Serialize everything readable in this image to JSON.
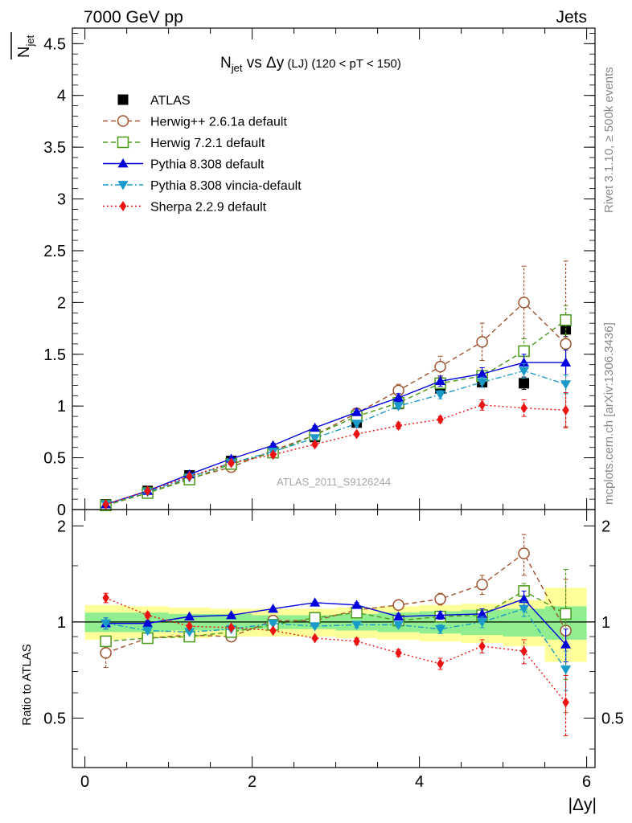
{
  "header": {
    "left": "7000 GeV pp",
    "right": "Jets"
  },
  "side_text": {
    "rivet": "Rivet 3.1.10, ≥ 500k events",
    "mcplots": "mcplots.cern.ch [arXiv:1306.3436]"
  },
  "watermark": "ATLAS_2011_S9126244",
  "colors": {
    "atlas": "#000000",
    "herwigpp": "#a0522d",
    "herwig7": "#4a9a1a",
    "pythia": "#0000dd",
    "vincia": "#1a9ac8",
    "sherpa": "#ee1111",
    "band_outer": "#ffff99",
    "band_inner": "#90ee90"
  },
  "chart_data": [
    {
      "type": "line",
      "title_main": "N",
      "title_sub": "jet",
      "title_vs": " vs ",
      "title_delta": "Δy",
      "title_lj": " (LJ)",
      "title_range": " (120 < pT < 150)",
      "ylabel_main": "N",
      "ylabel_sub": "jet",
      "ylim": [
        0,
        4.65
      ],
      "xlim": [
        -0.15,
        6.1
      ],
      "yticks": [
        0,
        0.5,
        1,
        1.5,
        2,
        2.5,
        3,
        3.5,
        4,
        4.5
      ],
      "ytick_labels": [
        "0",
        "0.5",
        "1",
        "1.5",
        "2",
        "2.5",
        "3",
        "3.5",
        "4",
        "4.5"
      ],
      "x": [
        0.25,
        0.75,
        1.25,
        1.75,
        2.25,
        2.75,
        3.25,
        3.75,
        4.25,
        4.75,
        5.25,
        5.75
      ],
      "series": [
        {
          "name": "ATLAS",
          "key": "atlas",
          "marker": "square-filled",
          "line": "none",
          "values": [
            0.05,
            0.18,
            0.33,
            0.47,
            0.56,
            0.7,
            0.84,
            1.02,
            1.17,
            1.23,
            1.22,
            1.74
          ],
          "errors": [
            0.01,
            0.01,
            0.01,
            0.01,
            0.01,
            0.02,
            0.02,
            0.03,
            0.04,
            0.05,
            0.06,
            0.07
          ]
        },
        {
          "name": "Herwig++ 2.6.1a default",
          "key": "herwigpp",
          "marker": "circle-open",
          "line": "dashed",
          "values": [
            0.04,
            0.16,
            0.3,
            0.41,
            0.57,
            0.72,
            0.93,
            1.15,
            1.38,
            1.62,
            2.0,
            1.6
          ],
          "errors": [
            0.005,
            0.01,
            0.01,
            0.02,
            0.02,
            0.03,
            0.04,
            0.06,
            0.1,
            0.18,
            0.35,
            0.8
          ]
        },
        {
          "name": "Herwig 7.2.1 default",
          "key": "herwig7",
          "marker": "square-open",
          "line": "dashed",
          "values": [
            0.04,
            0.16,
            0.29,
            0.44,
            0.55,
            0.72,
            0.9,
            1.03,
            1.22,
            1.29,
            1.53,
            1.83
          ],
          "errors": [
            0.005,
            0.01,
            0.01,
            0.02,
            0.02,
            0.03,
            0.03,
            0.04,
            0.05,
            0.08,
            0.12,
            0.14
          ]
        },
        {
          "name": "Pythia 8.308 default",
          "key": "pythia",
          "marker": "triangle-up",
          "line": "solid",
          "values": [
            0.05,
            0.18,
            0.34,
            0.49,
            0.62,
            0.79,
            0.94,
            1.08,
            1.24,
            1.31,
            1.42,
            1.42
          ],
          "errors": [
            0.005,
            0.01,
            0.01,
            0.02,
            0.02,
            0.02,
            0.03,
            0.04,
            0.05,
            0.06,
            0.08,
            0.12
          ]
        },
        {
          "name": "Pythia 8.308 vincia-default",
          "key": "vincia",
          "marker": "triangle-down",
          "line": "dashdot",
          "values": [
            0.05,
            0.17,
            0.31,
            0.45,
            0.56,
            0.69,
            0.83,
            1.0,
            1.11,
            1.23,
            1.34,
            1.21
          ],
          "errors": [
            0.005,
            0.01,
            0.01,
            0.02,
            0.02,
            0.02,
            0.03,
            0.03,
            0.04,
            0.05,
            0.07,
            0.09
          ]
        },
        {
          "name": "Sherpa 2.2.9 default",
          "key": "sherpa",
          "marker": "diamond",
          "line": "dotted",
          "values": [
            0.05,
            0.18,
            0.32,
            0.45,
            0.53,
            0.63,
            0.73,
            0.81,
            0.87,
            1.01,
            0.98,
            0.96
          ],
          "errors": [
            0.005,
            0.01,
            0.01,
            0.02,
            0.02,
            0.02,
            0.02,
            0.03,
            0.03,
            0.05,
            0.08,
            0.17
          ]
        }
      ]
    },
    {
      "type": "line",
      "ylabel": "Ratio to ATLAS",
      "xlabel": "|Δy|",
      "ylim": [
        0.35,
        2.25
      ],
      "xlim": [
        -0.15,
        6.1
      ],
      "yticks": [
        0.5,
        1,
        2
      ],
      "ytick_labels": [
        "0.5",
        "1",
        "2"
      ],
      "xticks": [
        0,
        2,
        4,
        6
      ],
      "xtick_labels": [
        "0",
        "2",
        "4",
        "6"
      ],
      "x": [
        0.25,
        0.75,
        1.25,
        1.75,
        2.25,
        2.75,
        3.25,
        3.75,
        4.25,
        4.75,
        5.25,
        5.75
      ],
      "bands": {
        "outer_lo": [
          0.88,
          0.89,
          0.89,
          0.9,
          0.9,
          0.9,
          0.89,
          0.88,
          0.87,
          0.86,
          0.84,
          0.75
        ],
        "outer_hi": [
          1.13,
          1.12,
          1.11,
          1.1,
          1.1,
          1.1,
          1.11,
          1.12,
          1.13,
          1.14,
          1.17,
          1.28
        ],
        "inner_lo": [
          0.93,
          0.93,
          0.94,
          0.94,
          0.95,
          0.95,
          0.94,
          0.93,
          0.92,
          0.91,
          0.9,
          0.88
        ],
        "inner_hi": [
          1.07,
          1.07,
          1.06,
          1.06,
          1.05,
          1.05,
          1.06,
          1.07,
          1.08,
          1.09,
          1.1,
          1.12
        ]
      },
      "series": [
        {
          "name": "Herwig++ 2.6.1a default",
          "key": "herwigpp",
          "marker": "circle-open",
          "line": "dashed",
          "values": [
            0.8,
            0.89,
            0.91,
            0.9,
            1.01,
            1.01,
            1.09,
            1.13,
            1.18,
            1.31,
            1.64,
            0.94
          ],
          "errors": [
            0.08,
            0.02,
            0.01,
            0.01,
            0.01,
            0.01,
            0.02,
            0.03,
            0.05,
            0.09,
            0.24,
            0.42
          ]
        },
        {
          "name": "Herwig 7.2.1 default",
          "key": "herwig7",
          "marker": "square-open",
          "line": "dashed",
          "values": [
            0.87,
            0.89,
            0.9,
            0.93,
            0.98,
            1.03,
            1.07,
            1.01,
            1.04,
            1.05,
            1.25,
            1.06
          ],
          "errors": [
            0.02,
            0.01,
            0.01,
            0.01,
            0.01,
            0.01,
            0.02,
            0.02,
            0.03,
            0.04,
            0.07,
            0.4
          ]
        },
        {
          "name": "Pythia 8.308 default",
          "key": "pythia",
          "marker": "triangle-up",
          "line": "solid",
          "values": [
            0.99,
            0.99,
            1.04,
            1.05,
            1.1,
            1.15,
            1.13,
            1.04,
            1.05,
            1.06,
            1.18,
            0.85
          ],
          "errors": [
            0.04,
            0.02,
            0.01,
            0.01,
            0.01,
            0.01,
            0.02,
            0.02,
            0.03,
            0.04,
            0.07,
            0.1
          ]
        },
        {
          "name": "Pythia 8.308 vincia-default",
          "key": "vincia",
          "marker": "triangle-down",
          "line": "dashdot",
          "values": [
            0.99,
            0.94,
            0.93,
            0.95,
            0.99,
            0.97,
            0.98,
            0.98,
            0.95,
            1.0,
            1.1,
            0.71
          ],
          "errors": [
            0.04,
            0.02,
            0.01,
            0.01,
            0.01,
            0.01,
            0.02,
            0.02,
            0.03,
            0.04,
            0.06,
            0.1
          ]
        },
        {
          "name": "Sherpa 2.2.9 default",
          "key": "sherpa",
          "marker": "diamond",
          "line": "dotted",
          "values": [
            1.19,
            1.05,
            0.97,
            0.96,
            0.94,
            0.89,
            0.87,
            0.8,
            0.74,
            0.84,
            0.81,
            0.56
          ],
          "errors": [
            0.04,
            0.02,
            0.01,
            0.01,
            0.01,
            0.01,
            0.02,
            0.02,
            0.03,
            0.04,
            0.07,
            0.12
          ]
        }
      ]
    }
  ]
}
